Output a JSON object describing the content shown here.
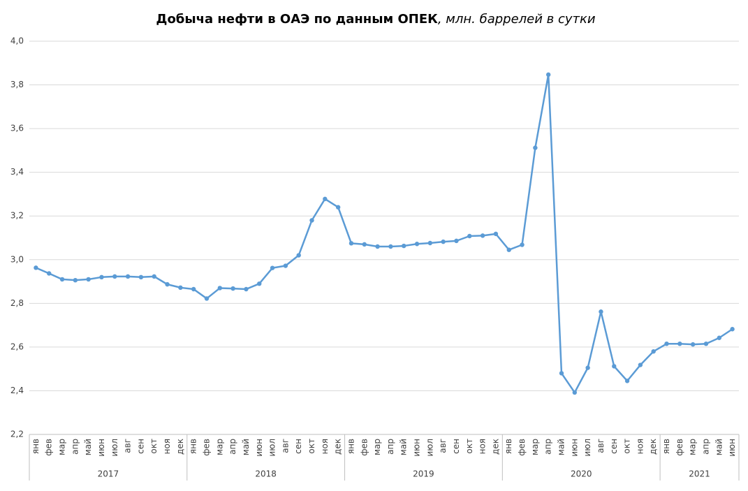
{
  "chart_data": {
    "type": "line",
    "title": "Добыча нефти в ОАЭ по данным ОПЕК",
    "subtitle": ", млн. баррелей в сутки",
    "groups": [
      {
        "name": "2017",
        "categories": [
          "янв",
          "фев",
          "мар",
          "апр",
          "май",
          "июн",
          "июл",
          "авг",
          "сен",
          "окт",
          "ноя",
          "дек"
        ]
      },
      {
        "name": "2018",
        "categories": [
          "янв",
          "фев",
          "мар",
          "апр",
          "май",
          "июн",
          "июл",
          "авг",
          "сен",
          "окт",
          "ноя",
          "дек"
        ]
      },
      {
        "name": "2019",
        "categories": [
          "янв",
          "фев",
          "мар",
          "апр",
          "май",
          "июн",
          "июл",
          "авг",
          "сен",
          "окт",
          "ноя",
          "дек"
        ]
      },
      {
        "name": "2020",
        "categories": [
          "янв",
          "фев",
          "мар",
          "апр",
          "май",
          "июн",
          "июл",
          "авг",
          "сен",
          "окт",
          "ноя",
          "дек"
        ]
      },
      {
        "name": "2021",
        "categories": [
          "янв",
          "фев",
          "мар",
          "апр",
          "май",
          "июн"
        ]
      }
    ],
    "series": [
      {
        "color": "#5b9bd5",
        "values": [
          2.963,
          2.937,
          2.91,
          2.906,
          2.91,
          2.92,
          2.923,
          2.923,
          2.92,
          2.923,
          2.887,
          2.872,
          2.865,
          2.822,
          2.87,
          2.868,
          2.865,
          2.89,
          2.962,
          2.972,
          3.02,
          3.18,
          3.278,
          3.24,
          3.075,
          3.07,
          3.06,
          3.06,
          3.063,
          3.072,
          3.076,
          3.082,
          3.086,
          3.108,
          3.11,
          3.118,
          3.045,
          3.068,
          3.512,
          3.847,
          2.48,
          2.392,
          2.505,
          2.762,
          2.512,
          2.445,
          2.518,
          2.58,
          2.615,
          2.615,
          2.612,
          2.615,
          2.642,
          2.682
        ]
      }
    ],
    "ylim": [
      2.2,
      4.0
    ],
    "yticks": [
      {
        "value": 2.2,
        "label": "2,2"
      },
      {
        "value": 2.4,
        "label": "2,4"
      },
      {
        "value": 2.6,
        "label": "2,6"
      },
      {
        "value": 2.8,
        "label": "2,8"
      },
      {
        "value": 3.0,
        "label": "3,0"
      },
      {
        "value": 3.2,
        "label": "3,2"
      },
      {
        "value": 3.4,
        "label": "3,4"
      },
      {
        "value": 3.6,
        "label": "3,6"
      },
      {
        "value": 3.8,
        "label": "3,8"
      },
      {
        "value": 4.0,
        "label": "4,0"
      }
    ],
    "grid": true
  }
}
